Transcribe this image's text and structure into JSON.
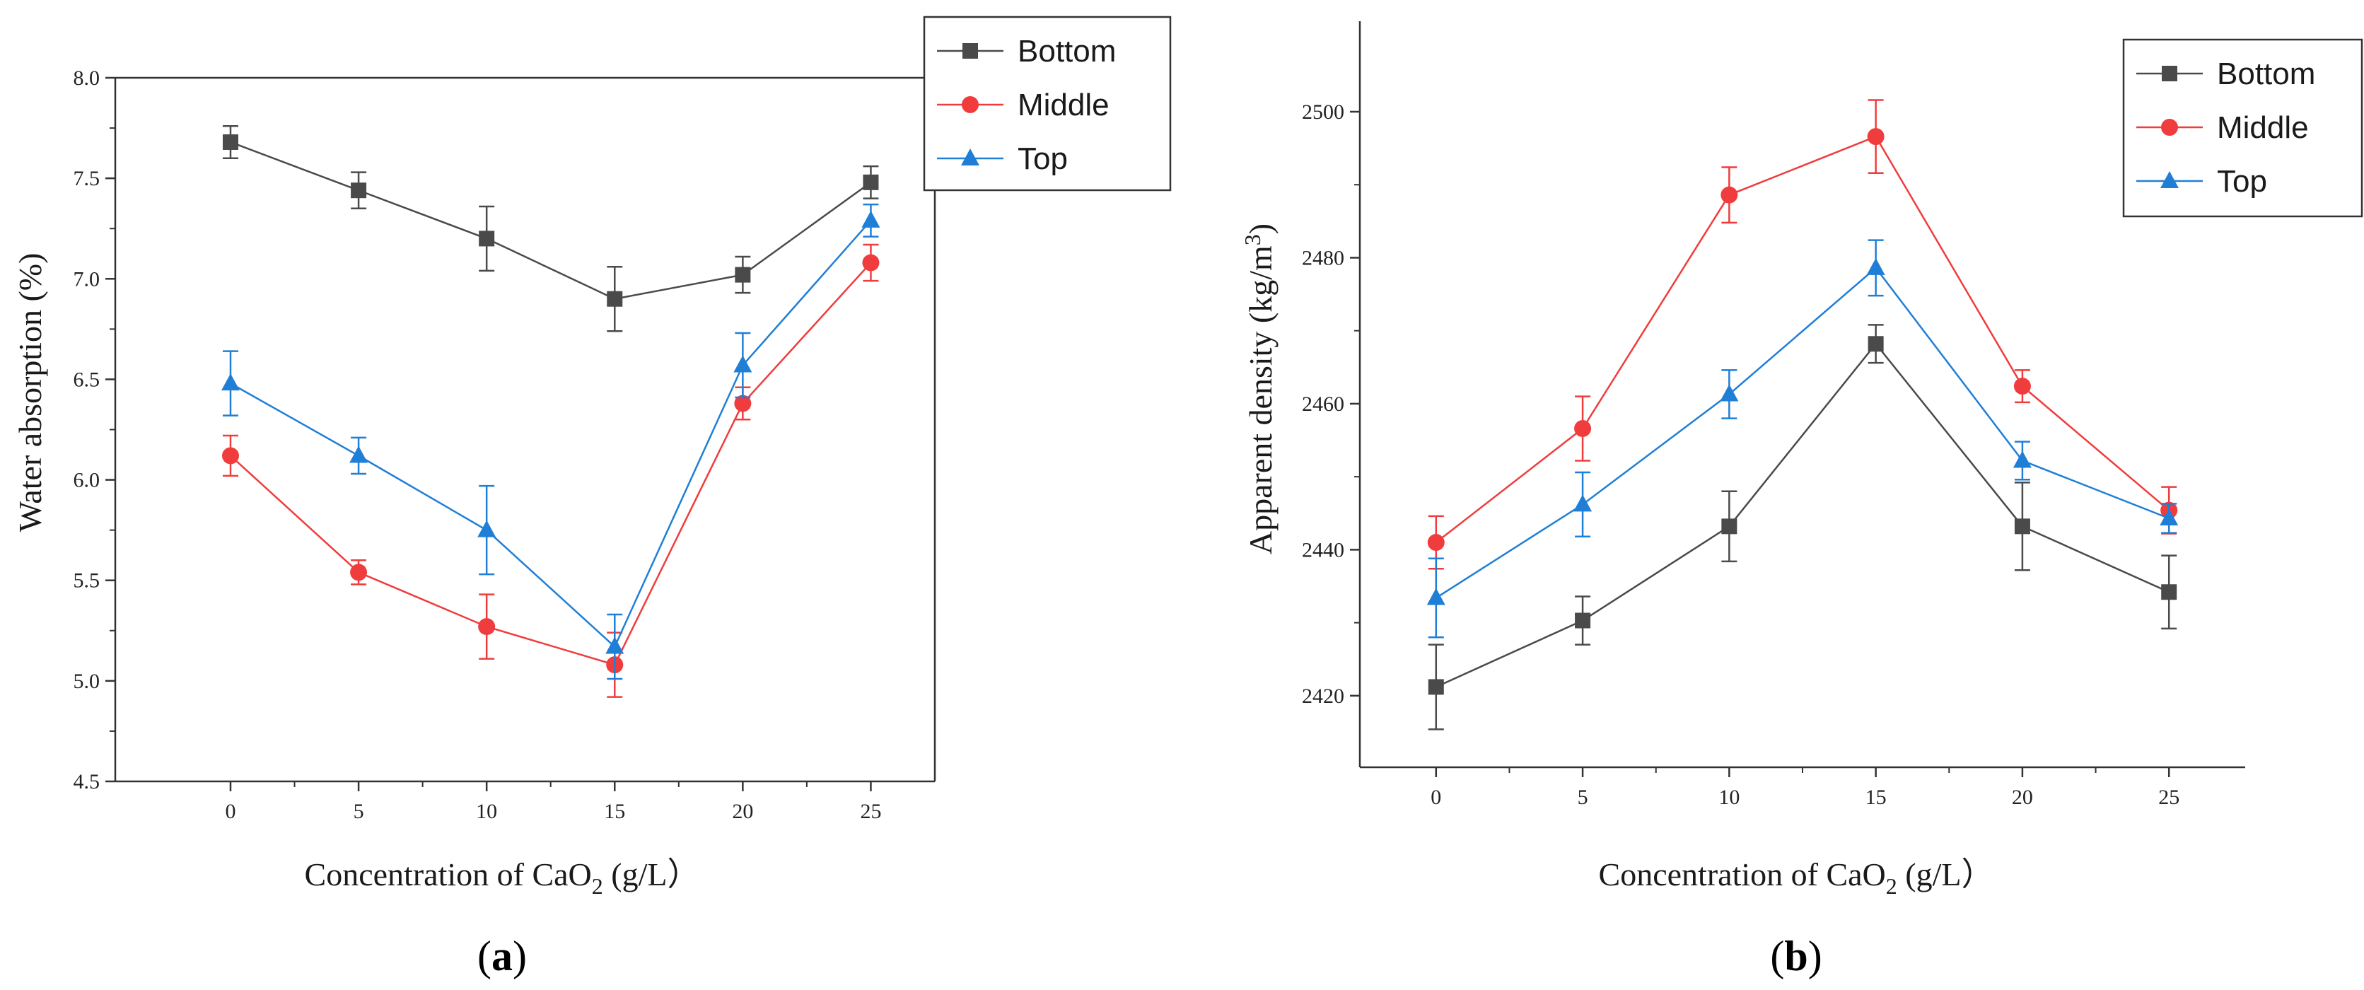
{
  "chart_data": [
    {
      "type": "line",
      "panel": "a",
      "caption_letter": "a",
      "title": "",
      "xlabel_prefix": "Concentration of CaO",
      "xlabel_sub": "2",
      "xlabel_suffix": " (g/L）",
      "ylabel": "Water absorption (%)",
      "x": [
        0,
        5,
        10,
        15,
        20,
        25
      ],
      "xlim": [
        -4.5,
        27.5
      ],
      "ylim": [
        4.5,
        8.0
      ],
      "xticks": [
        "0",
        "5",
        "10",
        "15",
        "20",
        "25"
      ],
      "yticks": [
        "4.5",
        "5.0",
        "5.5",
        "6.0",
        "6.5",
        "7.0",
        "7.5",
        "8.0"
      ],
      "legend_position": "top-right",
      "series": [
        {
          "name": "Bottom",
          "color": "#4a4a4a",
          "marker": "square",
          "values": [
            7.68,
            7.44,
            7.2,
            6.9,
            7.02,
            7.48
          ],
          "errors": [
            0.08,
            0.09,
            0.16,
            0.16,
            0.09,
            0.08
          ]
        },
        {
          "name": "Middle",
          "color": "#f03c3c",
          "marker": "circle",
          "values": [
            6.12,
            5.54,
            5.27,
            5.08,
            6.38,
            7.08
          ],
          "errors": [
            0.1,
            0.06,
            0.16,
            0.16,
            0.08,
            0.09
          ]
        },
        {
          "name": "Top",
          "color": "#1f7fd6",
          "marker": "triangle",
          "values": [
            6.48,
            6.12,
            5.75,
            5.17,
            6.57,
            7.29
          ],
          "errors": [
            0.16,
            0.09,
            0.22,
            0.16,
            0.16,
            0.08
          ]
        }
      ]
    },
    {
      "type": "line",
      "panel": "b",
      "caption_letter": "b",
      "title": "",
      "xlabel_prefix": "Concentration of CaO",
      "xlabel_sub": "2",
      "xlabel_suffix": " (g/L）",
      "ylabel_prefix": "Apparent density (kg/m",
      "ylabel_sup": "3",
      "ylabel_suffix": ")",
      "x": [
        0,
        5,
        10,
        15,
        20,
        25
      ],
      "xlim": [
        -2.6,
        27.6
      ],
      "ylim": [
        2410.2,
        2512.4
      ],
      "xticks": [
        "0",
        "5",
        "10",
        "15",
        "20",
        "25"
      ],
      "yticks": [
        "2420",
        "2440",
        "2460",
        "2480",
        "2500"
      ],
      "ytick_values": [
        2420,
        2440,
        2460,
        2480,
        2500
      ],
      "legend_position": "top-right",
      "series": [
        {
          "name": "Bottom",
          "color": "#4a4a4a",
          "marker": "square",
          "values": [
            2421.2,
            2430.3,
            2443.2,
            2468.2,
            2443.2,
            2434.2
          ],
          "errors": [
            5.8,
            3.3,
            4.8,
            2.6,
            6.0,
            5.0
          ]
        },
        {
          "name": "Middle",
          "color": "#f03c3c",
          "marker": "circle",
          "values": [
            2441.0,
            2456.6,
            2488.6,
            2496.6,
            2462.4,
            2445.4
          ],
          "errors": [
            3.6,
            4.4,
            3.8,
            5.0,
            2.2,
            3.2
          ]
        },
        {
          "name": "Top",
          "color": "#1f7fd6",
          "marker": "triangle",
          "values": [
            2433.4,
            2446.2,
            2461.3,
            2478.6,
            2452.2,
            2444.3
          ],
          "errors": [
            5.4,
            4.4,
            3.3,
            3.8,
            2.6,
            2.0
          ]
        }
      ]
    }
  ]
}
